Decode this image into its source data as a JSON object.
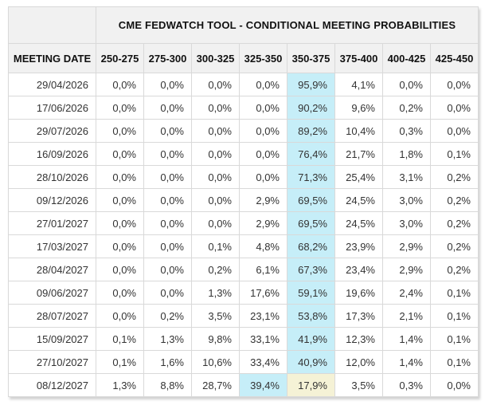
{
  "colors": {
    "header_bg": "#f1f1f1",
    "header_text": "#111111",
    "cell_bg": "#ffffff",
    "cell_text": "#333333",
    "border": "#d9d9d9",
    "highlight_cyan": "#c6eef8",
    "highlight_yellow": "#f5f2d6"
  },
  "chart_data": {
    "type": "table",
    "title": "CME FEDWATCH TOOL - CONDITIONAL MEETING PROBABILITIES",
    "date_header": "MEETING DATE",
    "rate_columns": [
      "250-275",
      "275-300",
      "300-325",
      "325-350",
      "350-375",
      "375-400",
      "400-425",
      "425-450"
    ],
    "highlight_legend": {
      "cyan": "highest probability cell in row",
      "yellow": "secondary highlighted cell (last row, 350-375)"
    },
    "rows": [
      {
        "date": "29/04/2026",
        "values": [
          "0,0%",
          "0,0%",
          "0,0%",
          "0,0%",
          "95,9%",
          "4,1%",
          "0,0%",
          "0,0%"
        ],
        "cyan": 4,
        "yellow": -1
      },
      {
        "date": "17/06/2026",
        "values": [
          "0,0%",
          "0,0%",
          "0,0%",
          "0,0%",
          "90,2%",
          "9,6%",
          "0,2%",
          "0,0%"
        ],
        "cyan": 4,
        "yellow": -1
      },
      {
        "date": "29/07/2026",
        "values": [
          "0,0%",
          "0,0%",
          "0,0%",
          "0,0%",
          "89,2%",
          "10,4%",
          "0,3%",
          "0,0%"
        ],
        "cyan": 4,
        "yellow": -1
      },
      {
        "date": "16/09/2026",
        "values": [
          "0,0%",
          "0,0%",
          "0,0%",
          "0,0%",
          "76,4%",
          "21,7%",
          "1,8%",
          "0,1%"
        ],
        "cyan": 4,
        "yellow": -1
      },
      {
        "date": "28/10/2026",
        "values": [
          "0,0%",
          "0,0%",
          "0,0%",
          "0,0%",
          "71,3%",
          "25,4%",
          "3,1%",
          "0,2%"
        ],
        "cyan": 4,
        "yellow": -1
      },
      {
        "date": "09/12/2026",
        "values": [
          "0,0%",
          "0,0%",
          "0,0%",
          "2,9%",
          "69,5%",
          "24,5%",
          "3,0%",
          "0,2%"
        ],
        "cyan": 4,
        "yellow": -1
      },
      {
        "date": "27/01/2027",
        "values": [
          "0,0%",
          "0,0%",
          "0,0%",
          "2,9%",
          "69,5%",
          "24,5%",
          "3,0%",
          "0,2%"
        ],
        "cyan": 4,
        "yellow": -1
      },
      {
        "date": "17/03/2027",
        "values": [
          "0,0%",
          "0,0%",
          "0,1%",
          "4,8%",
          "68,2%",
          "23,9%",
          "2,9%",
          "0,2%"
        ],
        "cyan": 4,
        "yellow": -1
      },
      {
        "date": "28/04/2027",
        "values": [
          "0,0%",
          "0,0%",
          "0,2%",
          "6,1%",
          "67,3%",
          "23,4%",
          "2,9%",
          "0,2%"
        ],
        "cyan": 4,
        "yellow": -1
      },
      {
        "date": "09/06/2027",
        "values": [
          "0,0%",
          "0,0%",
          "1,3%",
          "17,6%",
          "59,1%",
          "19,6%",
          "2,4%",
          "0,1%"
        ],
        "cyan": 4,
        "yellow": -1
      },
      {
        "date": "28/07/2027",
        "values": [
          "0,0%",
          "0,2%",
          "3,5%",
          "23,1%",
          "53,8%",
          "17,3%",
          "2,1%",
          "0,1%"
        ],
        "cyan": 4,
        "yellow": -1
      },
      {
        "date": "15/09/2027",
        "values": [
          "0,1%",
          "1,3%",
          "9,8%",
          "33,1%",
          "41,9%",
          "12,3%",
          "1,4%",
          "0,1%"
        ],
        "cyan": 4,
        "yellow": -1
      },
      {
        "date": "27/10/2027",
        "values": [
          "0,1%",
          "1,6%",
          "10,6%",
          "33,4%",
          "40,9%",
          "12,0%",
          "1,4%",
          "0,1%"
        ],
        "cyan": 4,
        "yellow": -1
      },
      {
        "date": "08/12/2027",
        "values": [
          "1,3%",
          "8,8%",
          "28,7%",
          "39,4%",
          "17,9%",
          "3,5%",
          "0,3%",
          "0,0%"
        ],
        "cyan": 3,
        "yellow": 4
      }
    ]
  }
}
